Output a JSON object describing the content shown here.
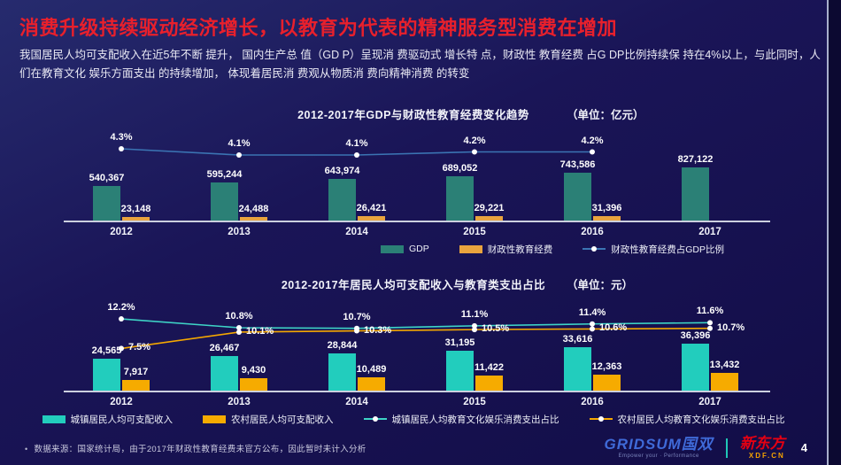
{
  "page": {
    "number": "4"
  },
  "header": {
    "title": "消费升级持续驱动经济增长，以教育为代表的精神服务型消费在增加",
    "subtitle": "我国居民人均可支配收入在近5年不断 提升， 国内生产总 值（GD P）呈现消 费驱动式 增长特 点，财政性 教育经费 占G DP比例持续保 持在4%以上，与此同时，人们在教育文化 娱乐方面支出 的持续增加， 体现着居民消 费观从物质消 费向精神消费 的转变"
  },
  "chart_data": [
    {
      "type": "bar",
      "title": "2012-2017年GDP与财政性教育经费变化趋势",
      "unit": "（单位：亿元）",
      "categories": [
        "2012",
        "2013",
        "2014",
        "2015",
        "2016",
        "2017"
      ],
      "series": [
        {
          "name": "GDP",
          "type": "bar",
          "color": "#2b8076",
          "values": [
            540367,
            595244,
            643974,
            689052,
            743586,
            827122
          ],
          "labels": [
            "540,367",
            "595,244",
            "643,974",
            "689,052",
            "743,586",
            "827,122"
          ]
        },
        {
          "name": "财政性教育经费",
          "type": "bar",
          "color": "#e9a43e",
          "values": [
            23148,
            24488,
            26421,
            29221,
            31396,
            null
          ],
          "labels": [
            "23,148",
            "24,488",
            "26,421",
            "29,221",
            "31,396",
            ""
          ]
        },
        {
          "name": "财政性教育经费占GDP比例",
          "type": "line",
          "color": "#3b74b3",
          "label_pos": "above",
          "values": [
            4.3,
            4.1,
            4.1,
            4.2,
            4.2,
            null
          ],
          "labels": [
            "4.3%",
            "4.1%",
            "4.1%",
            "4.2%",
            "4.2%",
            ""
          ]
        }
      ],
      "legend_position": "bottom",
      "grid": false
    },
    {
      "type": "bar",
      "title": "2012-2017年居民人均可支配收入与教育类支出占比",
      "unit": "（单位：元）",
      "categories": [
        "2012",
        "2013",
        "2014",
        "2015",
        "2016",
        "2017"
      ],
      "series": [
        {
          "name": "城镇居民人均可支配收入",
          "type": "bar",
          "color": "#22cdbd",
          "values": [
            24565,
            26467,
            28844,
            31195,
            33616,
            36396
          ],
          "labels": [
            "24,565",
            "26,467",
            "28,844",
            "31,195",
            "33,616",
            "36,396"
          ]
        },
        {
          "name": "农村居民人均可支配收入",
          "type": "bar",
          "color": "#f6ab00",
          "values": [
            7917,
            9430,
            10489,
            11422,
            12363,
            13432
          ],
          "labels": [
            "7,917",
            "9,430",
            "10,489",
            "11,422",
            "12,363",
            "13,432"
          ]
        },
        {
          "name": "城镇居民人均教育文化娱乐消费支出占比",
          "type": "line",
          "color": "#3ed4c6",
          "label_pos": "above",
          "values": [
            12.2,
            10.8,
            10.7,
            11.1,
            11.4,
            11.6
          ],
          "labels": [
            "12.2%",
            "10.8%",
            "10.7%",
            "11.1%",
            "11.4%",
            "11.6%"
          ]
        },
        {
          "name": "农村居民人均教育文化娱乐消费支出占比",
          "type": "line",
          "color": "#f5a800",
          "label_pos": "right",
          "values": [
            7.5,
            10.1,
            10.3,
            10.5,
            10.6,
            10.7
          ],
          "labels": [
            "7.5%",
            "10.1%",
            "10.3%",
            "10.5%",
            "10.6%",
            "10.7%"
          ]
        }
      ],
      "legend_position": "bottom",
      "grid": false
    }
  ],
  "footer": {
    "source_note": "数据来源：国家统计局，由于2017年财政性教育经费未官方公布，因此暂时未计入分析",
    "logos": {
      "gridsum": {
        "name": "GRIDSUM国双",
        "tagline": "Empower your · Performance",
        "color": "#3f6ad8"
      },
      "xdf": {
        "name": "新东方",
        "domain": "XDF.CN",
        "name_color": "#e60012",
        "domain_color": "#f5a300"
      }
    }
  }
}
